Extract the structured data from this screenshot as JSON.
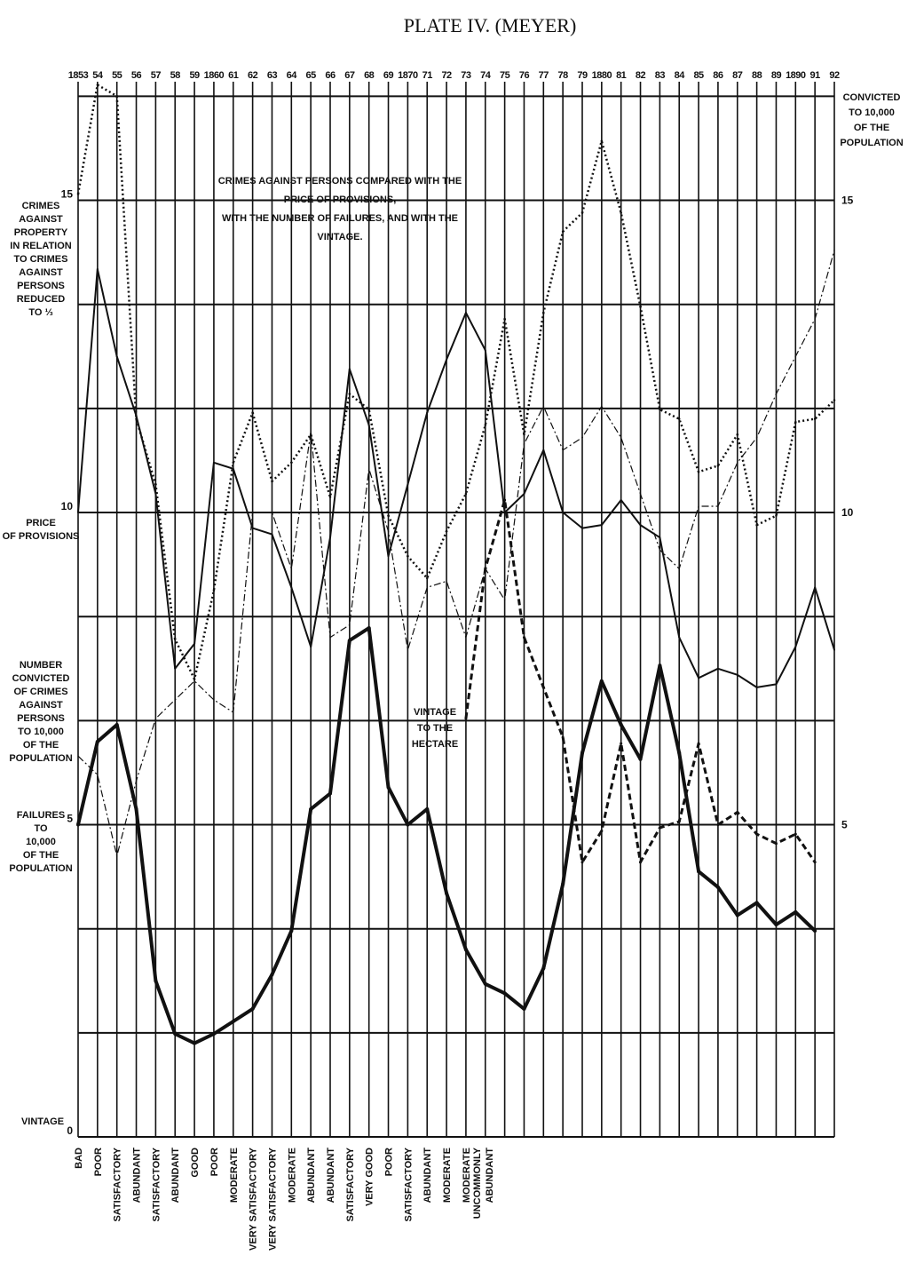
{
  "chart_data": {
    "type": "line",
    "title": "PLATE IV. (MEYER)",
    "annotation": "CRIMES AGAINST PERSONS COMPARED WITH THE\nPRICE OF PROVISIONS,\nWITH THE NUMBER OF FAILURES, AND WITH THE\nVINTAGE.",
    "vintage_annotation": "VINTAGE\nTO THE\nHECTARE",
    "x_label": "VINTAGE",
    "y2_label": "CONVICTED\nTO 10,000\nOF THE\nPOPULATION",
    "categories": [
      "1853",
      "54",
      "55",
      "56",
      "57",
      "58",
      "59",
      "1860",
      "61",
      "62",
      "63",
      "64",
      "65",
      "66",
      "67",
      "68",
      "69",
      "1870",
      "71",
      "72",
      "73",
      "74",
      "75",
      "76",
      "77",
      "78",
      "79",
      "1880",
      "81",
      "82",
      "83",
      "84",
      "85",
      "86",
      "87",
      "88",
      "89",
      "1890",
      "91",
      "92"
    ],
    "vintage": [
      "BAD",
      "POOR",
      "SATISFACTORY",
      "ABUNDANT",
      "SATISFACTORY",
      "ABUNDANT",
      "GOOD",
      "POOR",
      "MODERATE",
      "VERY SATISFACTORY",
      "VERY SATISFACTORY",
      "MODERATE",
      "ABUNDANT",
      "ABUNDANT",
      "SATISFACTORY",
      "VERY GOOD",
      "POOR",
      "SATISFACTORY",
      "ABUNDANT",
      "MODERATE",
      "MODERATE",
      "UNCOMMONLY\nABUNDANT",
      null,
      null,
      null,
      null,
      null,
      null,
      null,
      null,
      null,
      null,
      null,
      null,
      null,
      null,
      null,
      null,
      null,
      null
    ],
    "ylim": [
      0,
      16.9
    ],
    "yticks": [
      0,
      5,
      10,
      15
    ],
    "y2lim": [
      0,
      16.9
    ],
    "y2ticks": [
      5,
      10,
      15
    ],
    "ygrid": [
      0,
      1.667,
      3.333,
      5,
      6.667,
      8.333,
      10,
      11.667,
      13.333,
      15,
      16.667
    ],
    "series": [
      {
        "name": "PRICE\nOF PROVISIONS",
        "color": "#111111",
        "style": "solid",
        "width": 2,
        "values": [
          10.0,
          13.9,
          12.5,
          11.55,
          10.3,
          7.5,
          7.9,
          10.8,
          10.7,
          9.75,
          9.65,
          8.8,
          7.85,
          9.6,
          12.3,
          11.4,
          9.3,
          10.45,
          11.6,
          12.45,
          13.2,
          12.6,
          10.0,
          10.3,
          11.0,
          10.0,
          9.75,
          9.8,
          10.2,
          9.8,
          9.6,
          8.0,
          7.35,
          7.5,
          7.4,
          7.2,
          7.25,
          7.85,
          8.8,
          7.8
        ]
      },
      {
        "name": "NUMBER\nCONVICTED\nOF CRIMES\nAGAINST\nPERSONS\nTO 10,000\nOF THE\nPOPULATION",
        "color": "#111111",
        "style": "solid",
        "width": 4,
        "values": [
          5.0,
          6.33,
          6.6,
          5.25,
          2.5,
          1.65,
          1.5,
          1.65,
          1.85,
          2.05,
          2.6,
          3.3,
          5.25,
          5.5,
          7.95,
          8.15,
          5.6,
          5.0,
          5.25,
          3.9,
          3.0,
          2.45,
          2.3,
          2.05,
          2.7,
          4.05,
          6.15,
          7.3,
          6.6,
          6.05,
          7.55,
          6.15,
          4.25,
          4.0,
          3.55,
          3.75,
          3.4,
          3.6,
          3.3,
          null
        ]
      },
      {
        "name": "CRIMES\nAGAINST\nPROPERTY\nIN RELATION\nTO CRIMES\nAGAINST\nPERSONS\nREDUCED\nTO ⅓",
        "color": "#111111",
        "style": "dotted",
        "width": 2.5,
        "values": [
          15.1,
          16.85,
          16.67,
          11.5,
          10.45,
          7.97,
          7.33,
          8.75,
          10.8,
          11.6,
          10.5,
          10.8,
          11.25,
          10.25,
          11.9,
          11.65,
          9.95,
          9.3,
          8.95,
          9.7,
          10.3,
          11.4,
          13.1,
          11.25,
          13.2,
          14.5,
          14.8,
          15.95,
          14.8,
          13.3,
          11.65,
          11.5,
          10.65,
          10.75,
          11.25,
          9.8,
          9.95,
          11.45,
          11.5,
          11.8
        ]
      },
      {
        "name": "FAILURES\nTO\n10,000\nOF THE\nPOPULATION",
        "color": "#111111",
        "style": "dashdot",
        "width": 1.2,
        "values": [
          6.1,
          5.8,
          4.5,
          5.7,
          6.7,
          7.0,
          7.3,
          7.0,
          6.8,
          10.0,
          10.0,
          9.1,
          11.3,
          8.0,
          8.2,
          10.7,
          9.7,
          7.8,
          8.8,
          8.9,
          8.0,
          9.1,
          8.6,
          11.1,
          11.7,
          11.0,
          11.2,
          11.7,
          11.2,
          10.3,
          9.4,
          9.1,
          10.1,
          10.1,
          10.8,
          11.2,
          11.9,
          12.5,
          13.1,
          14.2
        ]
      },
      {
        "color": "#111111",
        "style": "dashed",
        "width": 3,
        "values": [
          null,
          null,
          null,
          null,
          null,
          null,
          null,
          null,
          null,
          null,
          null,
          null,
          null,
          null,
          null,
          null,
          null,
          null,
          null,
          null,
          6.7,
          9.1,
          10.2,
          8.0,
          7.2,
          6.4,
          4.4,
          4.9,
          6.3,
          4.4,
          4.95,
          5.05,
          6.3,
          5.0,
          5.2,
          4.85,
          4.7,
          4.85,
          4.4,
          null
        ]
      }
    ]
  }
}
